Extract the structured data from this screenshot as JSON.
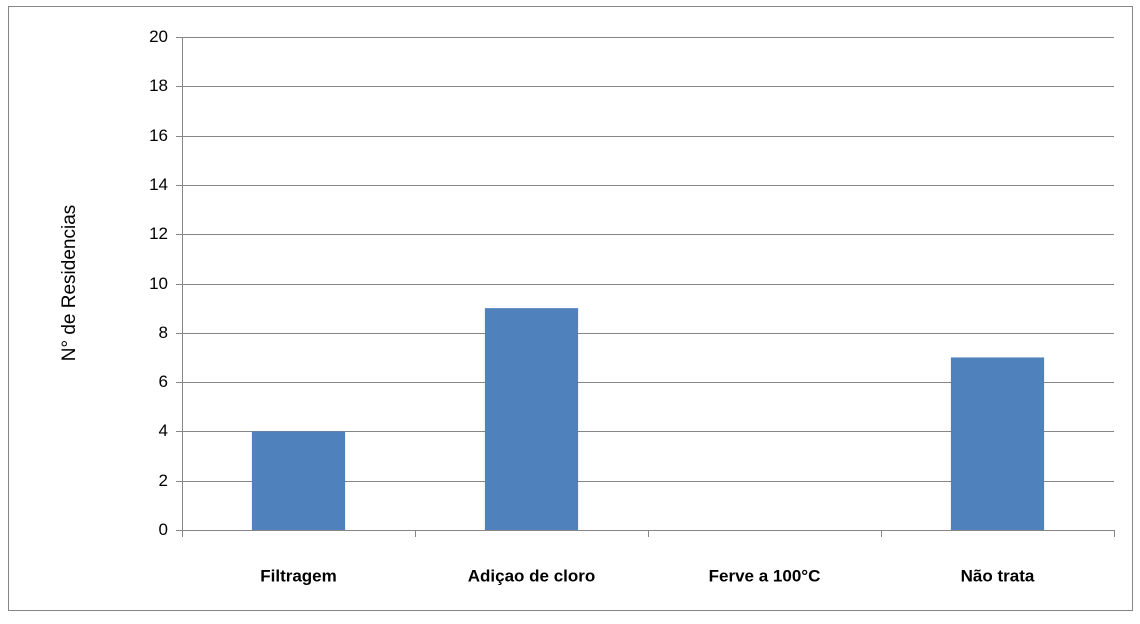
{
  "chart_data": {
    "type": "bar",
    "y_label": "N° de Residencias",
    "categories": [
      "Filtragem",
      "Adiçao de cloro",
      "Ferve a 100°C",
      "Não trata"
    ],
    "values": [
      4,
      9,
      0,
      7
    ],
    "color": "#4f81bd",
    "ylim": [
      0,
      20
    ],
    "yticks": [
      0,
      2,
      4,
      6,
      8,
      10,
      12,
      14,
      16,
      18,
      20
    ],
    "grid": true
  }
}
